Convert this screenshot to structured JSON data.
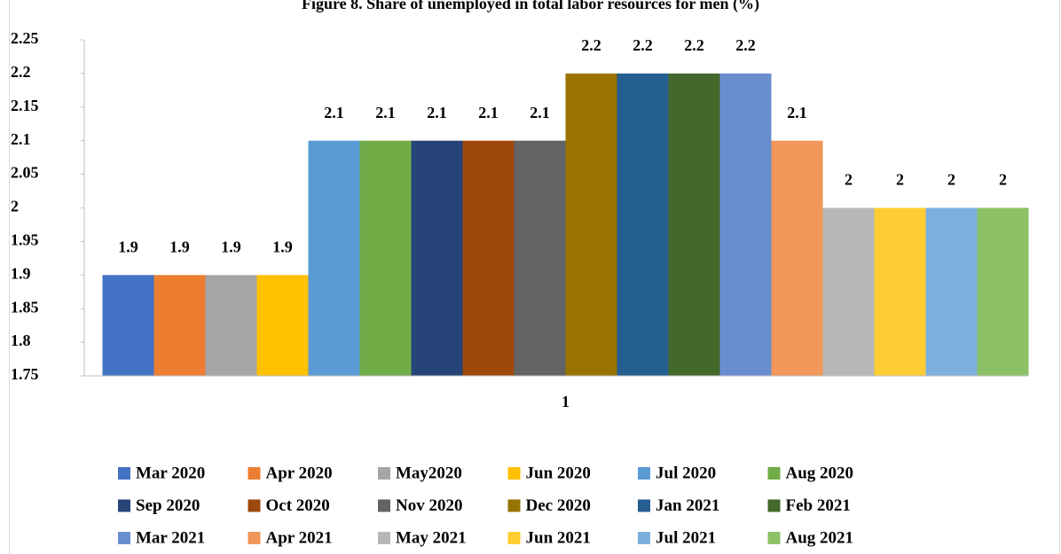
{
  "chart_data": {
    "type": "bar",
    "title": "Figure 8. Share of unemployed in total labor resources for men (%)",
    "categories": [
      "1"
    ],
    "series": [
      {
        "name": "Mar 2020",
        "color": "#4472c4",
        "values": [
          1.9
        ]
      },
      {
        "name": "Apr 2020",
        "color": "#ed7d31",
        "values": [
          1.9
        ]
      },
      {
        "name": "May2020",
        "color": "#a5a5a5",
        "values": [
          1.9
        ]
      },
      {
        "name": "Jun 2020",
        "color": "#ffc000",
        "values": [
          1.9
        ]
      },
      {
        "name": "Jul 2020",
        "color": "#5b9bd5",
        "values": [
          2.1
        ]
      },
      {
        "name": "Aug 2020",
        "color": "#70ad47",
        "values": [
          2.1
        ]
      },
      {
        "name": "Sep 2020",
        "color": "#264478",
        "values": [
          2.1
        ]
      },
      {
        "name": "Oct 2020",
        "color": "#9e480e",
        "values": [
          2.1
        ]
      },
      {
        "name": "Nov 2020",
        "color": "#636363",
        "values": [
          2.1
        ]
      },
      {
        "name": "Dec 2020",
        "color": "#997300",
        "values": [
          2.2
        ]
      },
      {
        "name": "Jan 2021",
        "color": "#255e91",
        "values": [
          2.2
        ]
      },
      {
        "name": "Feb 2021",
        "color": "#43682b",
        "values": [
          2.2
        ]
      },
      {
        "name": "Mar 2021",
        "color": "#698ed0",
        "values": [
          2.2
        ]
      },
      {
        "name": "Apr 2021",
        "color": "#f1975a",
        "values": [
          2.1
        ]
      },
      {
        "name": "May 2021",
        "color": "#b7b7b7",
        "values": [
          2
        ]
      },
      {
        "name": "Jun 2021",
        "color": "#ffcd33",
        "values": [
          2
        ]
      },
      {
        "name": "Jul 2021",
        "color": "#7cafdd",
        "values": [
          2
        ]
      },
      {
        "name": "Aug 2021",
        "color": "#8cc168",
        "values": [
          2
        ]
      }
    ],
    "ylim": [
      1.75,
      2.25
    ],
    "yticks": [
      1.75,
      1.8,
      1.85,
      1.9,
      1.95,
      2,
      2.05,
      2.1,
      2.15,
      2.2,
      2.25
    ],
    "legend": "bottom"
  }
}
